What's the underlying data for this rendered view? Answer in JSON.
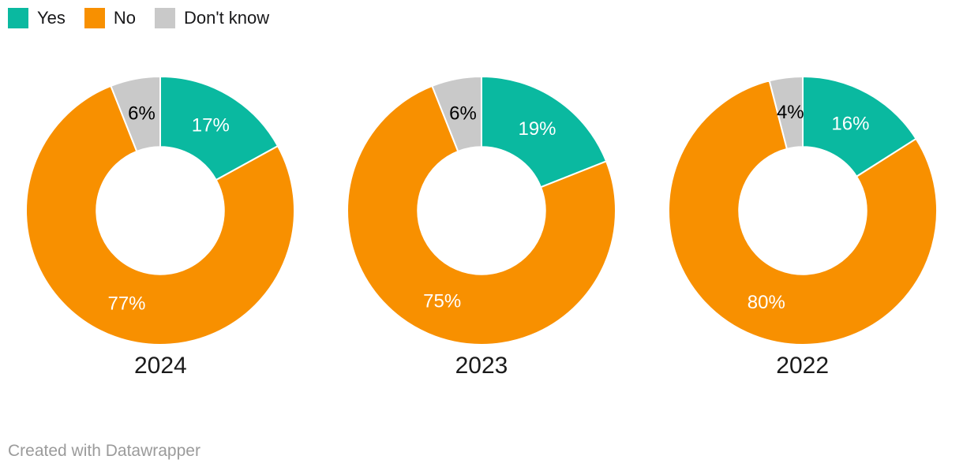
{
  "legend": {
    "items": [
      {
        "label": "Yes",
        "color": "#0ab9a0"
      },
      {
        "label": "No",
        "color": "#f89000"
      },
      {
        "label": "Don't know",
        "color": "#c9c9c9"
      }
    ]
  },
  "footer": {
    "credit": "Created with Datawrapper"
  },
  "chart_data": {
    "type": "pie",
    "variant": "donut-small-multiples",
    "categories": [
      "Yes",
      "No",
      "Don't know"
    ],
    "series_colors": [
      "#0ab9a0",
      "#f89000",
      "#c9c9c9"
    ],
    "slice_label_colors": [
      "#ffffff",
      "#ffffff",
      "#000000"
    ],
    "value_suffix": "%",
    "start_angle": "top",
    "direction": "clockwise",
    "inner_radius_ratio": 0.475,
    "legend_position": "top-left",
    "charts": [
      {
        "title": "2024",
        "values": [
          17,
          77,
          6
        ]
      },
      {
        "title": "2023",
        "values": [
          19,
          75,
          6
        ]
      },
      {
        "title": "2022",
        "values": [
          16,
          80,
          4
        ]
      }
    ]
  }
}
